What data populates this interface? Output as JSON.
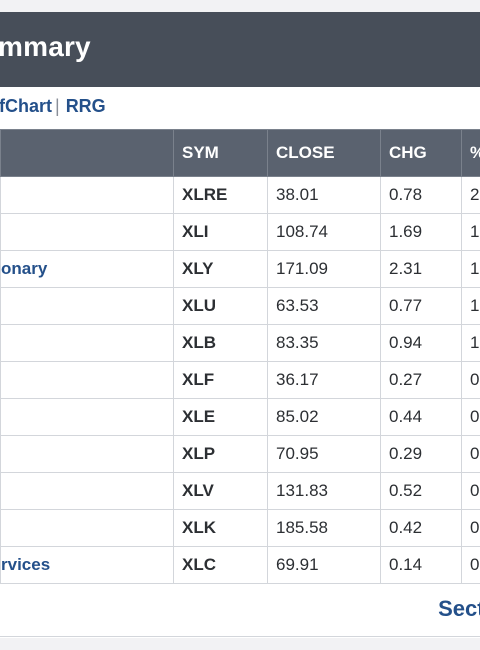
{
  "header": {
    "title": "mmary"
  },
  "links": {
    "chart": "fChart",
    "separator": "|",
    "rrg": "RRG"
  },
  "table": {
    "columns": [
      "",
      "SYM",
      "CLOSE",
      "CHG",
      "%"
    ],
    "rows": [
      {
        "name": "",
        "sym": "XLRE",
        "close": "38.01",
        "chg": "0.78",
        "pct": "2"
      },
      {
        "name": "",
        "sym": "XLI",
        "close": "108.74",
        "chg": "1.69",
        "pct": "1"
      },
      {
        "name": "onary",
        "sym": "XLY",
        "close": "171.09",
        "chg": "2.31",
        "pct": "1"
      },
      {
        "name": "",
        "sym": "XLU",
        "close": "63.53",
        "chg": "0.77",
        "pct": "1"
      },
      {
        "name": "",
        "sym": "XLB",
        "close": "83.35",
        "chg": "0.94",
        "pct": "1"
      },
      {
        "name": "",
        "sym": "XLF",
        "close": "36.17",
        "chg": "0.27",
        "pct": "0"
      },
      {
        "name": "",
        "sym": "XLE",
        "close": "85.02",
        "chg": "0.44",
        "pct": "0"
      },
      {
        "name": "",
        "sym": "XLP",
        "close": "70.95",
        "chg": "0.29",
        "pct": "0"
      },
      {
        "name": "",
        "sym": "XLV",
        "close": "131.83",
        "chg": "0.52",
        "pct": "0"
      },
      {
        "name": "",
        "sym": "XLK",
        "close": "185.58",
        "chg": "0.42",
        "pct": "0"
      },
      {
        "name": "rvices",
        "sym": "XLC",
        "close": "69.91",
        "chg": "0.14",
        "pct": "0"
      }
    ]
  },
  "footer": {
    "link": "Secto"
  },
  "colors": {
    "header_bg": "#474e59",
    "table_header_bg": "#5a626f",
    "link": "#24508a"
  }
}
